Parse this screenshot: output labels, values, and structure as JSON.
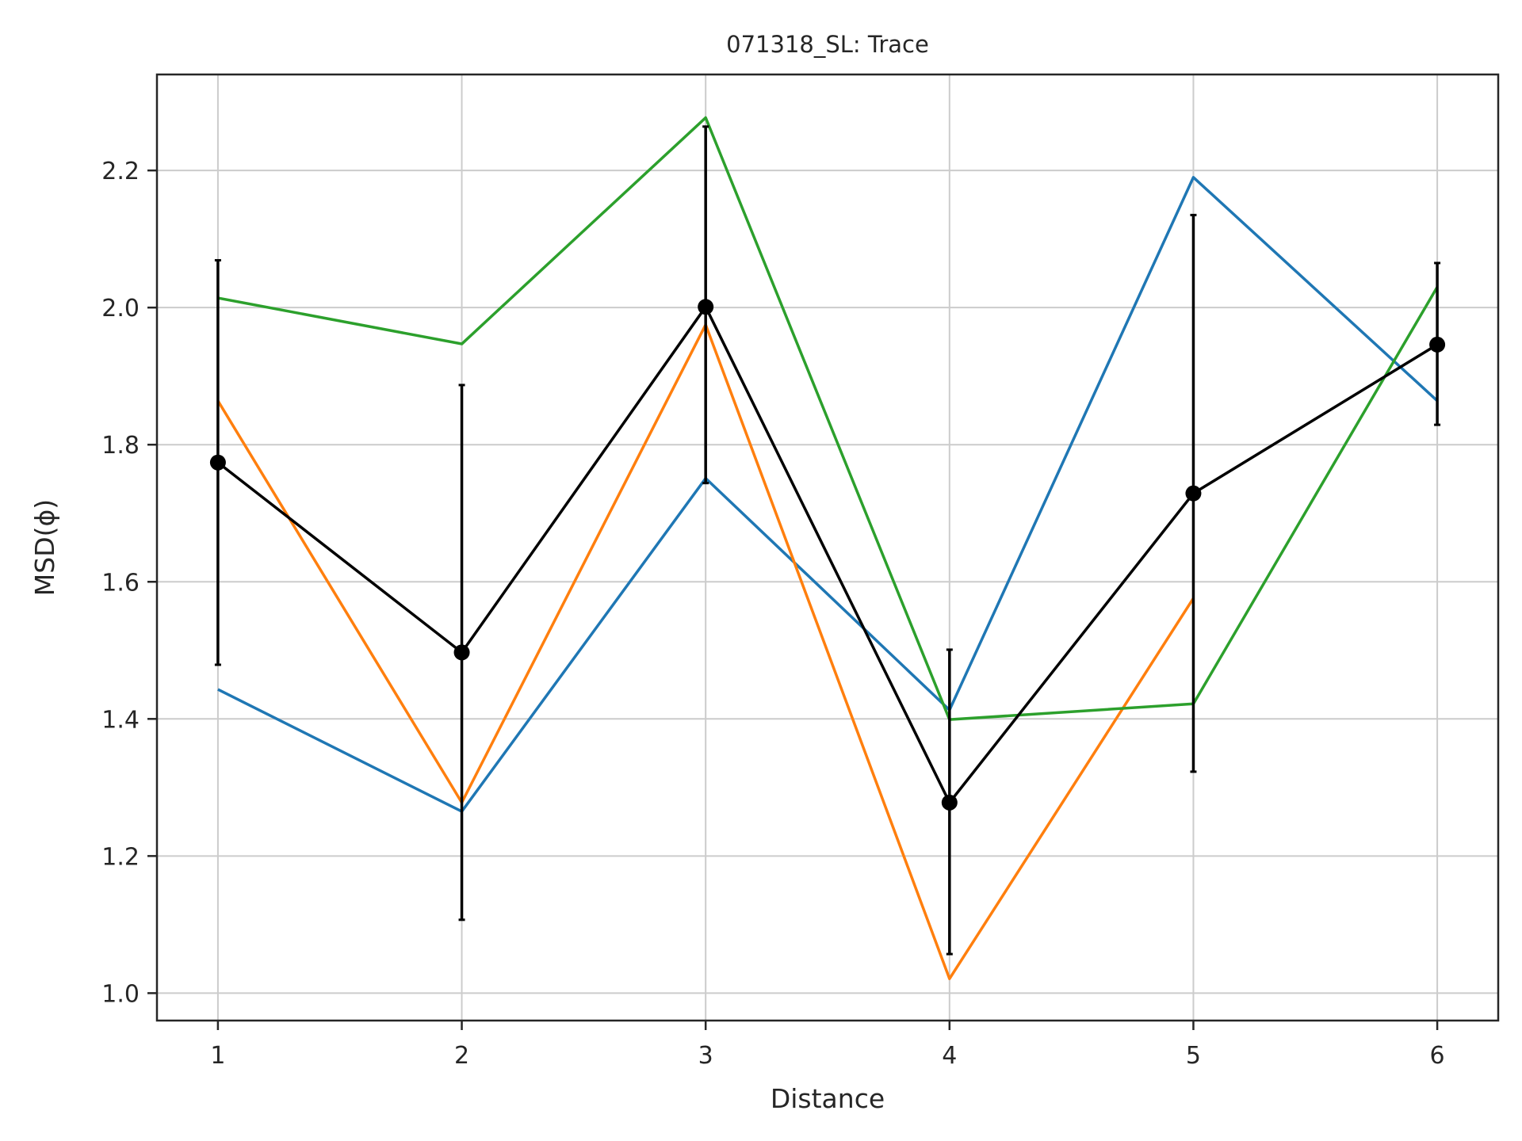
{
  "chart_data": {
    "type": "line",
    "title": "071318_SL: Trace",
    "xlabel": "Distance",
    "ylabel": "MSD(ϕ)",
    "xlim": [
      0.75,
      6.25
    ],
    "ylim": [
      0.96,
      2.34
    ],
    "x_ticks": [
      "1",
      "2",
      "3",
      "4",
      "5",
      "6"
    ],
    "y_ticks": [
      "1.0",
      "1.2",
      "1.4",
      "1.6",
      "1.8",
      "2.0",
      "2.2"
    ],
    "grid": true,
    "legend": "none",
    "series": [
      {
        "color": "#1f77b4",
        "x": [
          1,
          2,
          3,
          4,
          5,
          6
        ],
        "y": [
          1.443,
          1.265,
          1.751,
          1.413,
          2.19,
          1.864
        ]
      },
      {
        "color": "#ff7f0e",
        "x": [
          1,
          2,
          3,
          4,
          5
        ],
        "y": [
          1.864,
          1.278,
          1.975,
          1.021,
          1.576
        ]
      },
      {
        "color": "#2ca02c",
        "x": [
          1,
          2,
          3,
          4,
          5,
          6
        ],
        "y": [
          2.014,
          1.947,
          2.277,
          1.399,
          1.422,
          2.03
        ]
      }
    ],
    "mean_series": {
      "color": "#000000",
      "x": [
        1,
        2,
        3,
        4,
        5,
        6
      ],
      "y": [
        1.774,
        1.497,
        2.001,
        1.278,
        1.729,
        1.946
      ],
      "err_low": [
        1.479,
        1.107,
        1.744,
        1.057,
        1.323,
        1.829
      ],
      "err_high": [
        2.069,
        1.887,
        2.264,
        1.501,
        2.135,
        2.065
      ]
    }
  }
}
